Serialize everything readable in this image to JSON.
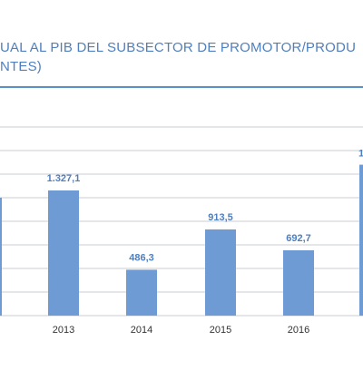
{
  "colors": {
    "bar": "#6f9bd4",
    "title_text": "#4f7fbf",
    "title_rule": "#5b8fc9",
    "gridline": "#c9ced6",
    "label_text": "#4f7fbf",
    "tick_text": "#333333"
  },
  "title": {
    "line1": "UAL AL PIB DEL SUBSECTOR DE PROMOTOR/PRODU",
    "line2": "NTES)"
  },
  "chart_data": {
    "type": "bar",
    "title": "UAL AL PIB DEL SUBSECTOR DE PROMOTOR/PRODU NTES)",
    "categories": [
      "",
      "2013",
      "2014",
      "2015",
      "2016",
      ""
    ],
    "values": [
      null,
      1327.1,
      486.3,
      913.5,
      692.7,
      null
    ],
    "value_labels": [
      "",
      "1.327,1",
      "486,3",
      "913,5",
      "692,7",
      "1"
    ],
    "ylim": [
      0,
      2000
    ],
    "grid": true,
    "legend": "none",
    "xlabel": "",
    "ylabel": ""
  }
}
